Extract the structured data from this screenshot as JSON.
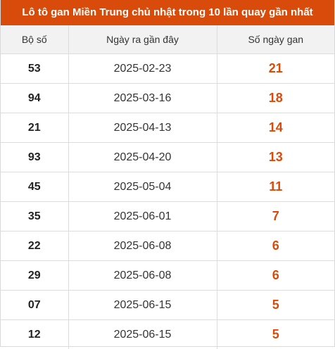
{
  "title": "Lô tô gan Miền Trung chủ nhật trong 10 lần quay gần nhất",
  "accent_color": "#d84b0a",
  "columns": {
    "number": "Bộ số",
    "last_date": "Ngày ra gần đây",
    "gap_days": "Số ngày gan"
  },
  "rows": [
    {
      "number": "53",
      "last_date": "2025-02-23",
      "gap_days": "21"
    },
    {
      "number": "94",
      "last_date": "2025-03-16",
      "gap_days": "18"
    },
    {
      "number": "21",
      "last_date": "2025-04-13",
      "gap_days": "14"
    },
    {
      "number": "93",
      "last_date": "2025-04-20",
      "gap_days": "13"
    },
    {
      "number": "45",
      "last_date": "2025-05-04",
      "gap_days": "11"
    },
    {
      "number": "35",
      "last_date": "2025-06-01",
      "gap_days": "7"
    },
    {
      "number": "22",
      "last_date": "2025-06-08",
      "gap_days": "6"
    },
    {
      "number": "29",
      "last_date": "2025-06-08",
      "gap_days": "6"
    },
    {
      "number": "07",
      "last_date": "2025-06-15",
      "gap_days": "5"
    },
    {
      "number": "12",
      "last_date": "2025-06-15",
      "gap_days": "5"
    }
  ]
}
